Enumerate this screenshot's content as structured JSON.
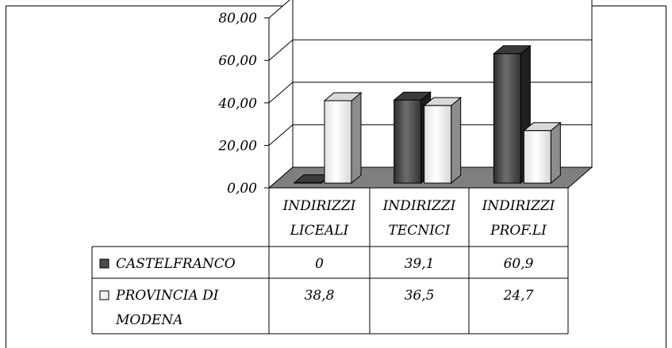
{
  "chart_data": {
    "type": "bar",
    "variant": "3d-clustered-column-with-data-table",
    "categories": [
      [
        "INDIRIZZI",
        "LICEALI"
      ],
      [
        "INDIRIZZI",
        "TECNICI"
      ],
      [
        "INDIRIZZI",
        "PROF.LI"
      ]
    ],
    "series": [
      {
        "name": "CASTELFRANCO",
        "name_lines": [
          "CASTELFRANCO"
        ],
        "values": [
          0,
          39.1,
          60.9
        ],
        "value_labels": [
          "0",
          "39,1",
          "60,9"
        ],
        "color": "#4a4a4a"
      },
      {
        "name": "PROVINCIA DI MODENA",
        "name_lines": [
          "PROVINCIA DI",
          "MODENA"
        ],
        "values": [
          38.8,
          36.5,
          24.7
        ],
        "value_labels": [
          "38,8",
          "36,5",
          "24,7"
        ],
        "color": "#f2f2f2"
      }
    ],
    "y_ticks": [
      "0,00",
      "20,00",
      "40,00",
      "60,00",
      "80,00"
    ],
    "ylim": [
      0,
      80
    ],
    "grid": true,
    "floor_color": "#7f7f7f",
    "title": "",
    "xlabel": "",
    "ylabel": ""
  }
}
